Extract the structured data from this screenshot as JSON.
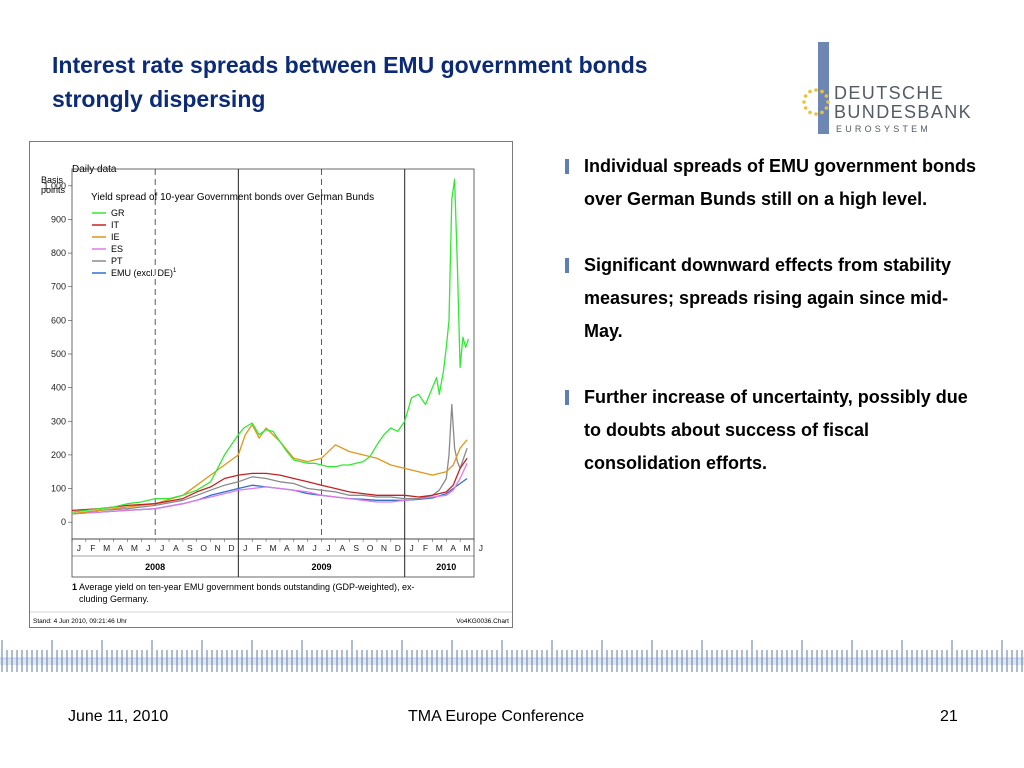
{
  "slide": {
    "title_line1": "Interest rate spreads between EMU government bonds",
    "title_line2": "strongly dispersing"
  },
  "logo": {
    "line1": "DEUTSCHE",
    "line2": "BUNDESBANK",
    "line3": "EUROSYSTEM",
    "bar_color": "#6e86b4",
    "star_color": "#e8c33a"
  },
  "bullets": [
    "Individual spreads of EMU government bonds over German Bunds still on a high level.",
    "Significant downward effects from stability measures; spreads rising again since mid-May.",
    "Further increase of uncertainty, possibly due to doubts about success of fiscal consolidation efforts."
  ],
  "footer": {
    "date": "June 11, 2010",
    "conference": "TMA Europe Conference",
    "page": "21"
  },
  "chart_data": {
    "type": "line",
    "header": "Daily data",
    "title": "Yield spread of 10-year Government bonds over German Bunds",
    "ylabel": "Basis points",
    "ylim": [
      -50,
      1050
    ],
    "yticks": [
      0,
      100,
      200,
      300,
      400,
      500,
      600,
      700,
      800,
      900,
      1000
    ],
    "ytick_labels": [
      "0",
      "100",
      "200",
      "300",
      "400",
      "500",
      "600",
      "700",
      "800",
      "900",
      "1,000"
    ],
    "xlim": [
      0,
      29
    ],
    "month_labels": [
      "J",
      "F",
      "M",
      "A",
      "M",
      "J",
      "J",
      "A",
      "S",
      "O",
      "N",
      "D",
      "J",
      "F",
      "M",
      "A",
      "M",
      "J",
      "J",
      "A",
      "S",
      "O",
      "N",
      "D",
      "J",
      "F",
      "M",
      "A",
      "M",
      "J"
    ],
    "years": [
      {
        "label": "2008",
        "center": 6
      },
      {
        "label": "2009",
        "center": 18
      },
      {
        "label": "2010",
        "center": 27
      }
    ],
    "year_dividers": [
      12,
      24
    ],
    "half_year_dividers": [
      6,
      18
    ],
    "grid": false,
    "legend_position": "top-left",
    "footnote_number": "1",
    "footnote": "Average yield on ten-year EMU government bonds outstanding  (GDP-weighted), ex-cluding Germany.",
    "stand": "Stand: 4 Jun 2010, 09:21:46 Uhr",
    "chart_id": "Vo4KG0036.Chart",
    "series": [
      {
        "name": "GR",
        "label": "GR",
        "color": "#33e833",
        "x": [
          0,
          1,
          2,
          3,
          4,
          5,
          6,
          7,
          8,
          9,
          10,
          10.5,
          11,
          11.5,
          12,
          12.4,
          13,
          13.5,
          14,
          14.5,
          15,
          15.5,
          16,
          16.5,
          17,
          17.5,
          18,
          18.5,
          19,
          19.5,
          20,
          20.5,
          21,
          21.5,
          22,
          22.5,
          23,
          23.5,
          24,
          24.5,
          25,
          25.5,
          26,
          26.3,
          26.5,
          26.8,
          27,
          27.2,
          27.4,
          27.6,
          27.8,
          28,
          28.2,
          28.4,
          28.6
        ],
        "y": [
          30,
          35,
          40,
          45,
          55,
          60,
          70,
          70,
          80,
          95,
          120,
          160,
          200,
          230,
          260,
          280,
          295,
          260,
          275,
          270,
          240,
          210,
          185,
          180,
          175,
          175,
          170,
          165,
          165,
          170,
          170,
          175,
          180,
          195,
          230,
          260,
          280,
          270,
          300,
          370,
          380,
          350,
          400,
          430,
          380,
          450,
          520,
          600,
          960,
          1020,
          760,
          460,
          550,
          520,
          545
        ]
      },
      {
        "name": "IT",
        "label": "IT",
        "color": "#c42222",
        "x": [
          0,
          2,
          4,
          6,
          8,
          9,
          10,
          11,
          12,
          13,
          14,
          15,
          16,
          17,
          18,
          19,
          20,
          21,
          22,
          23,
          24,
          25,
          26,
          27,
          27.5,
          28,
          28.5
        ],
        "y": [
          35,
          40,
          50,
          55,
          70,
          90,
          105,
          130,
          140,
          145,
          145,
          140,
          130,
          120,
          110,
          100,
          90,
          85,
          80,
          80,
          80,
          75,
          80,
          90,
          110,
          160,
          190
        ]
      },
      {
        "name": "IE",
        "label": "IE",
        "color": "#e0961a",
        "x": [
          0,
          2,
          4,
          6,
          8,
          9,
          10,
          11,
          12,
          12.5,
          13,
          13.5,
          14,
          15,
          16,
          17,
          18,
          19,
          20,
          21,
          22,
          23,
          24,
          25,
          26,
          27,
          27.5,
          28,
          28.5
        ],
        "y": [
          25,
          35,
          45,
          55,
          80,
          110,
          140,
          170,
          200,
          260,
          290,
          250,
          280,
          240,
          190,
          180,
          190,
          230,
          210,
          200,
          190,
          170,
          160,
          150,
          140,
          150,
          170,
          220,
          245
        ]
      },
      {
        "name": "ES",
        "label": "ES",
        "color": "#e07ae8",
        "x": [
          0,
          2,
          4,
          6,
          8,
          9,
          10,
          11,
          12,
          13,
          14,
          15,
          16,
          17,
          18,
          19,
          20,
          21,
          22,
          23,
          24,
          25,
          26,
          27,
          27.5,
          28,
          28.5
        ],
        "y": [
          25,
          30,
          35,
          40,
          55,
          65,
          75,
          85,
          95,
          100,
          105,
          100,
          95,
          90,
          80,
          75,
          70,
          65,
          60,
          60,
          65,
          70,
          75,
          80,
          95,
          130,
          175
        ]
      },
      {
        "name": "PT",
        "label": "PT",
        "color": "#8a8a8a",
        "x": [
          0,
          2,
          4,
          6,
          8,
          9,
          10,
          11,
          12,
          13,
          14,
          15,
          16,
          17,
          18,
          19,
          20,
          21,
          22,
          23,
          24,
          25,
          26,
          26.5,
          27,
          27.2,
          27.4,
          27.6,
          27.8,
          28,
          28.5
        ],
        "y": [
          25,
          35,
          40,
          50,
          65,
          80,
          95,
          110,
          120,
          135,
          130,
          120,
          115,
          100,
          95,
          90,
          80,
          80,
          75,
          75,
          70,
          70,
          80,
          95,
          130,
          200,
          350,
          220,
          180,
          160,
          220
        ]
      },
      {
        "name": "EMU (excl. DE)",
        "label": "EMU (excl. DE)",
        "color": "#2f6fd6",
        "x": [
          0,
          2,
          4,
          6,
          8,
          9,
          10,
          11,
          12,
          13,
          14,
          15,
          16,
          17,
          18,
          19,
          20,
          21,
          22,
          23,
          24,
          25,
          26,
          27,
          27.5,
          28,
          28.5
        ],
        "y": [
          25,
          30,
          35,
          40,
          55,
          65,
          80,
          90,
          100,
          110,
          105,
          100,
          95,
          85,
          80,
          75,
          70,
          68,
          65,
          65,
          65,
          68,
          72,
          85,
          100,
          115,
          130
        ]
      }
    ]
  }
}
